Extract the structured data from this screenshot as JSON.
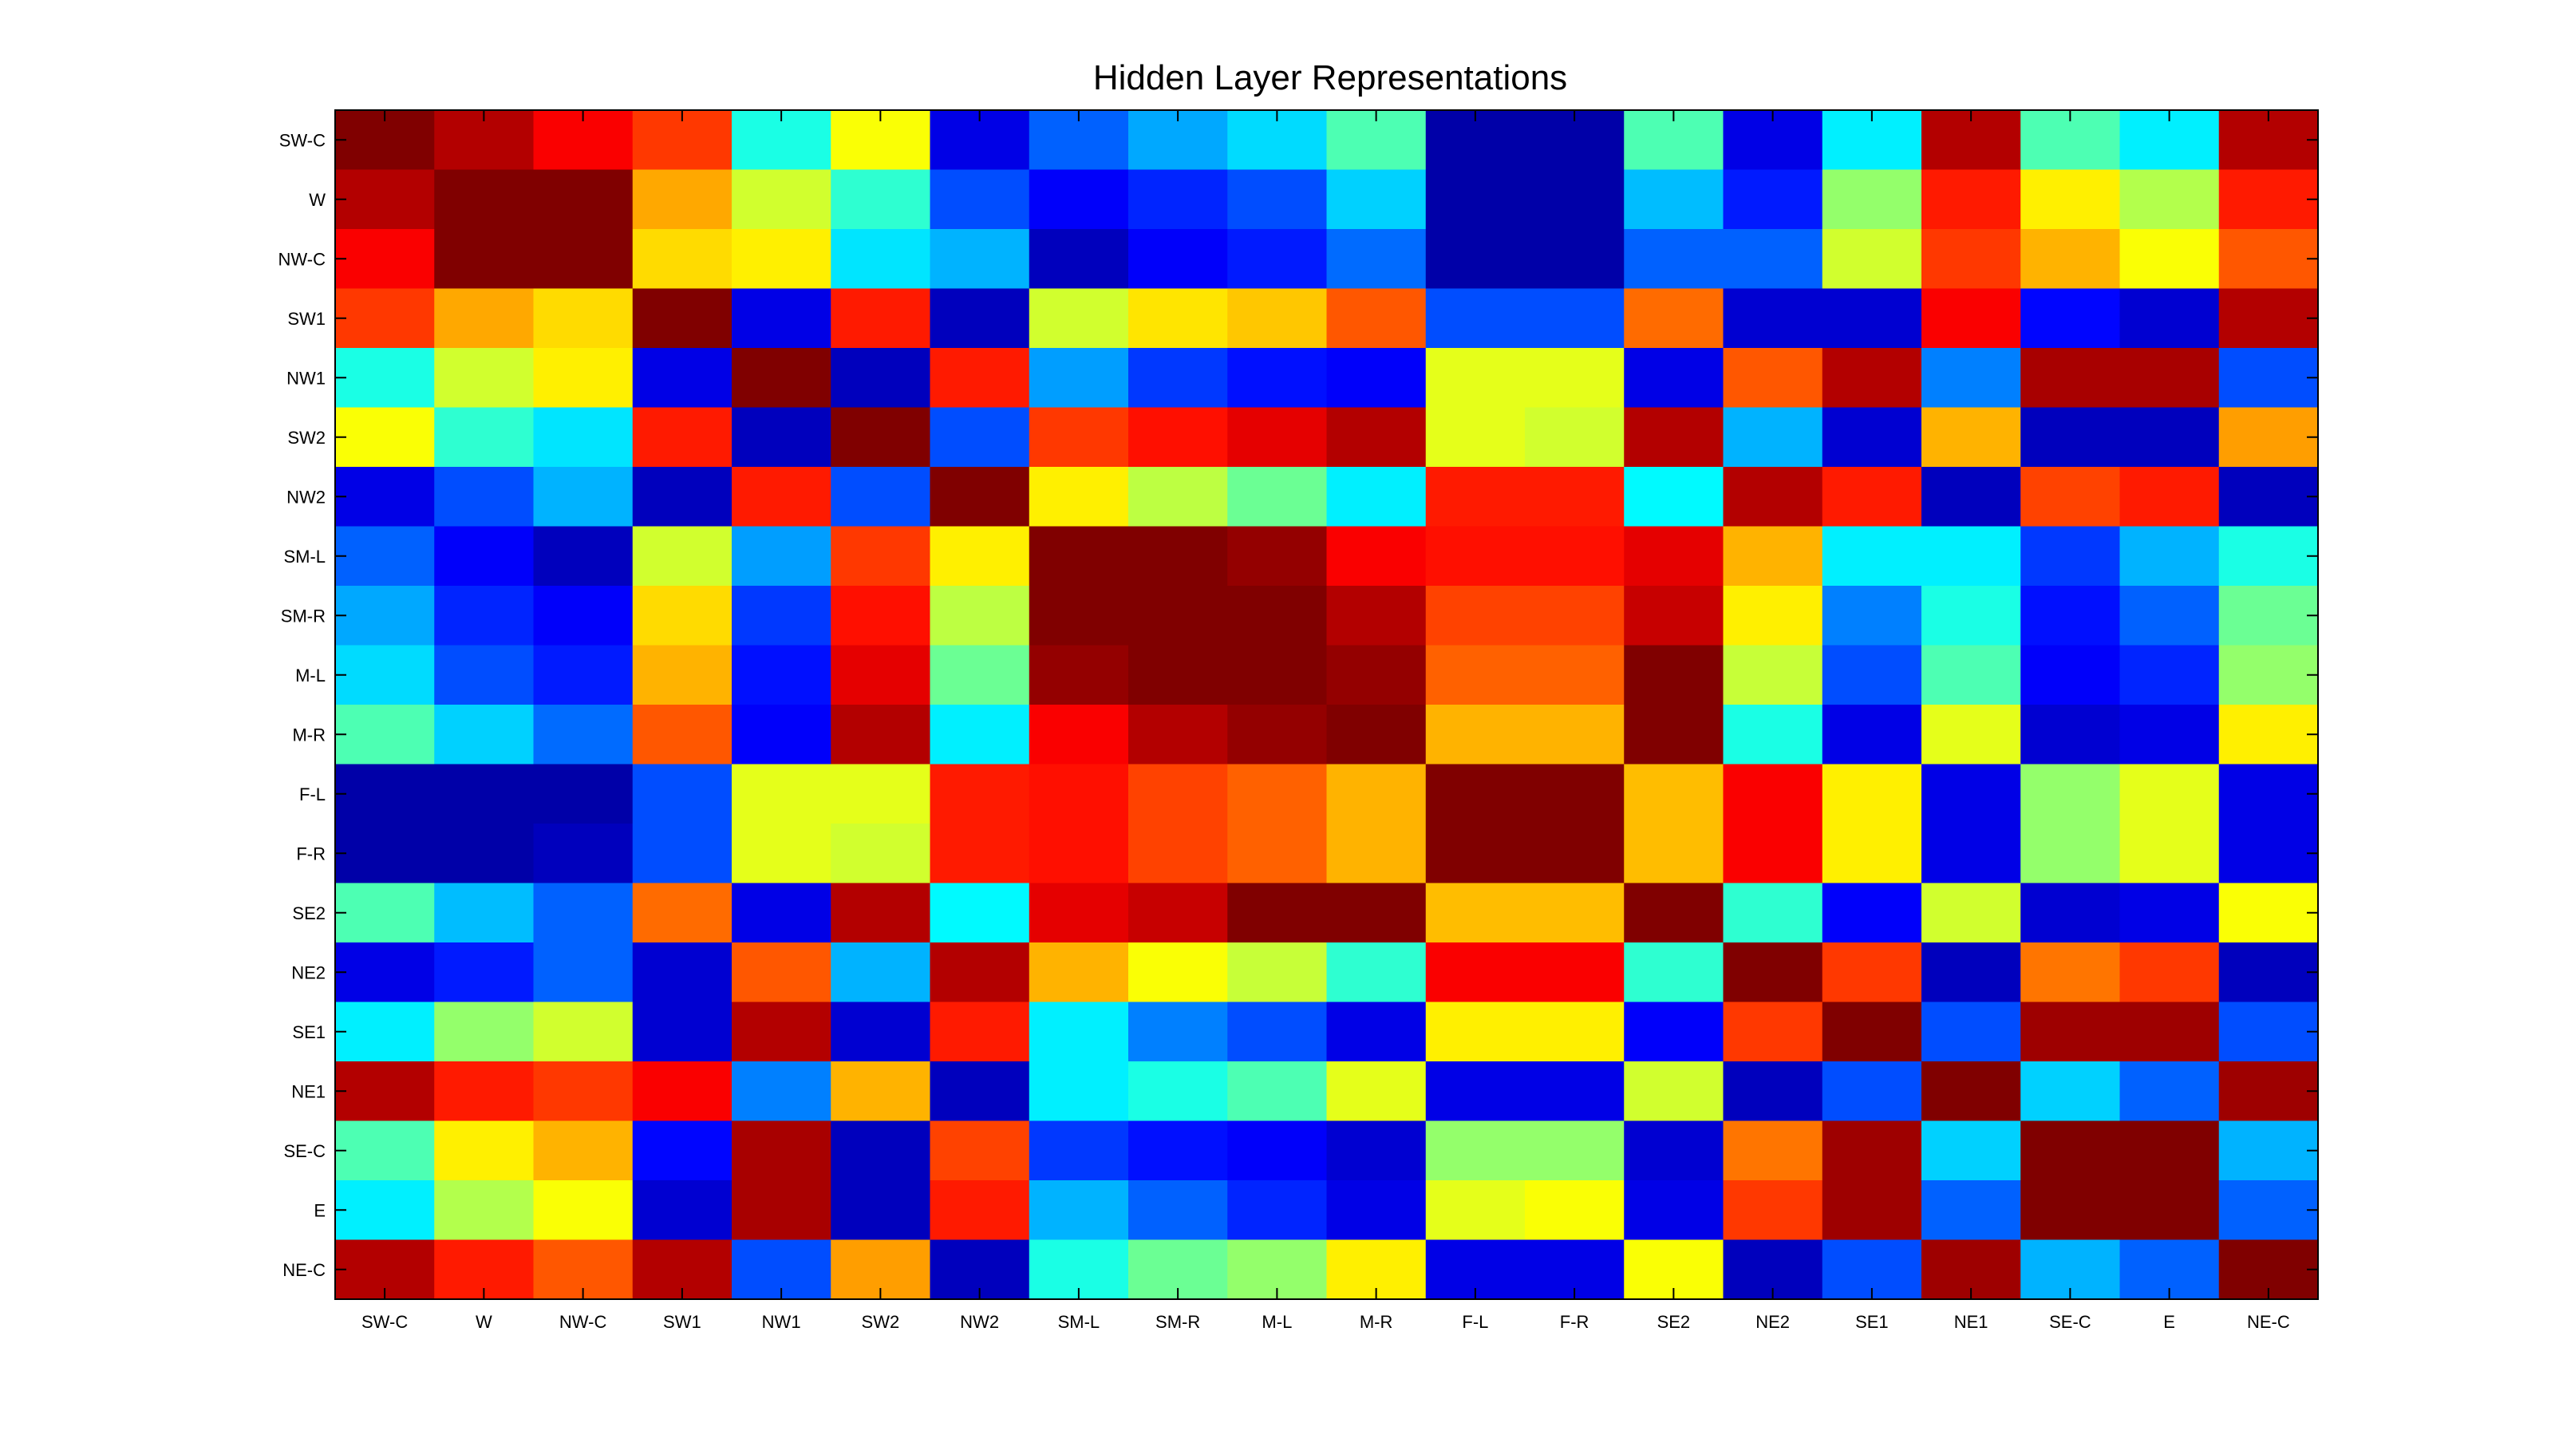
{
  "chart_data": {
    "type": "heatmap",
    "title": "Hidden Layer Representations",
    "xlabel": "",
    "ylabel": "",
    "colormap": "jet",
    "value_range": [
      0,
      1
    ],
    "x_categories": [
      "SW-C",
      "W",
      "NW-C",
      "SW1",
      "NW1",
      "SW2",
      "NW2",
      "SM-L",
      "SM-R",
      "M-L",
      "M-R",
      "F-L",
      "F-R",
      "SE2",
      "NE2",
      "SE1",
      "NE1",
      "SE-C",
      "E",
      "NE-C"
    ],
    "y_categories": [
      "SW-C",
      "W",
      "NW-C",
      "SW1",
      "NW1",
      "SW2",
      "NW2",
      "SM-L",
      "SM-R",
      "M-L",
      "M-R",
      "F-L",
      "F-R",
      "SE2",
      "NE2",
      "SE1",
      "NE1",
      "SE-C",
      "E",
      "NE-C"
    ],
    "values": [
      [
        1.0,
        0.95,
        0.88,
        0.82,
        0.4,
        0.62,
        0.1,
        0.22,
        0.29,
        0.34,
        0.45,
        0.04,
        0.04,
        0.45,
        0.1,
        0.36,
        0.95,
        0.45,
        0.36,
        0.95
      ],
      [
        0.95,
        1.0,
        1.0,
        0.71,
        0.58,
        0.42,
        0.2,
        0.12,
        0.16,
        0.2,
        0.33,
        0.04,
        0.04,
        0.31,
        0.15,
        0.52,
        0.85,
        0.64,
        0.55,
        0.85
      ],
      [
        0.88,
        1.0,
        1.0,
        0.66,
        0.64,
        0.35,
        0.3,
        0.06,
        0.12,
        0.15,
        0.23,
        0.04,
        0.04,
        0.22,
        0.22,
        0.58,
        0.82,
        0.7,
        0.62,
        0.79
      ],
      [
        0.82,
        0.71,
        0.66,
        1.0,
        0.1,
        0.85,
        0.06,
        0.58,
        0.65,
        0.68,
        0.79,
        0.2,
        0.2,
        0.77,
        0.08,
        0.08,
        0.88,
        0.13,
        0.08,
        0.95
      ],
      [
        0.4,
        0.58,
        0.64,
        0.1,
        1.0,
        0.06,
        0.85,
        0.28,
        0.18,
        0.14,
        0.12,
        0.6,
        0.6,
        0.1,
        0.79,
        0.95,
        0.25,
        0.96,
        0.96,
        0.2
      ],
      [
        0.62,
        0.42,
        0.35,
        0.85,
        0.06,
        1.0,
        0.2,
        0.82,
        0.86,
        0.9,
        0.95,
        0.6,
        0.58,
        0.95,
        0.3,
        0.08,
        0.7,
        0.06,
        0.06,
        0.72
      ],
      [
        0.1,
        0.2,
        0.3,
        0.06,
        0.85,
        0.2,
        1.0,
        0.64,
        0.56,
        0.48,
        0.36,
        0.85,
        0.85,
        0.37,
        0.95,
        0.85,
        0.06,
        0.81,
        0.85,
        0.06
      ],
      [
        0.22,
        0.12,
        0.06,
        0.58,
        0.28,
        0.82,
        0.64,
        1.0,
        1.0,
        0.98,
        0.88,
        0.86,
        0.86,
        0.9,
        0.7,
        0.36,
        0.36,
        0.18,
        0.3,
        0.4
      ],
      [
        0.29,
        0.16,
        0.12,
        0.66,
        0.18,
        0.86,
        0.56,
        1.0,
        1.0,
        1.0,
        0.95,
        0.81,
        0.81,
        0.93,
        0.64,
        0.25,
        0.4,
        0.14,
        0.22,
        0.48
      ],
      [
        0.34,
        0.2,
        0.15,
        0.7,
        0.14,
        0.9,
        0.48,
        0.98,
        1.0,
        1.0,
        0.98,
        0.78,
        0.78,
        1.0,
        0.57,
        0.2,
        0.45,
        0.12,
        0.16,
        0.52
      ],
      [
        0.45,
        0.33,
        0.23,
        0.79,
        0.12,
        0.95,
        0.36,
        0.88,
        0.95,
        0.98,
        1.0,
        0.7,
        0.7,
        1.0,
        0.4,
        0.1,
        0.6,
        0.08,
        0.1,
        0.64
      ],
      [
        0.04,
        0.04,
        0.04,
        0.2,
        0.6,
        0.6,
        0.85,
        0.86,
        0.81,
        0.78,
        0.7,
        1.0,
        1.0,
        0.69,
        0.88,
        0.64,
        0.1,
        0.52,
        0.6,
        0.1
      ],
      [
        0.04,
        0.04,
        0.06,
        0.2,
        0.6,
        0.58,
        0.85,
        0.86,
        0.81,
        0.78,
        0.7,
        1.0,
        1.0,
        0.69,
        0.88,
        0.64,
        0.1,
        0.52,
        0.6,
        0.1
      ],
      [
        0.45,
        0.31,
        0.22,
        0.77,
        0.1,
        0.95,
        0.37,
        0.9,
        0.93,
        1.0,
        1.0,
        0.69,
        0.69,
        1.0,
        0.42,
        0.12,
        0.58,
        0.08,
        0.1,
        0.62
      ],
      [
        0.1,
        0.15,
        0.22,
        0.08,
        0.79,
        0.3,
        0.95,
        0.7,
        0.62,
        0.57,
        0.42,
        0.88,
        0.88,
        0.42,
        1.0,
        0.82,
        0.06,
        0.76,
        0.82,
        0.06
      ],
      [
        0.36,
        0.52,
        0.58,
        0.08,
        0.95,
        0.08,
        0.85,
        0.36,
        0.25,
        0.2,
        0.1,
        0.64,
        0.64,
        0.12,
        0.82,
        1.0,
        0.2,
        0.97,
        0.97,
        0.2
      ],
      [
        0.95,
        0.85,
        0.82,
        0.88,
        0.25,
        0.7,
        0.06,
        0.36,
        0.4,
        0.45,
        0.6,
        0.1,
        0.1,
        0.58,
        0.06,
        0.2,
        1.0,
        0.33,
        0.22,
        0.97
      ],
      [
        0.45,
        0.64,
        0.7,
        0.13,
        0.96,
        0.06,
        0.81,
        0.18,
        0.14,
        0.12,
        0.08,
        0.52,
        0.52,
        0.08,
        0.76,
        0.97,
        0.33,
        1.0,
        1.0,
        0.3
      ],
      [
        0.36,
        0.55,
        0.62,
        0.08,
        0.96,
        0.06,
        0.85,
        0.3,
        0.22,
        0.16,
        0.1,
        0.6,
        0.62,
        0.1,
        0.82,
        0.97,
        0.22,
        1.0,
        1.0,
        0.22
      ],
      [
        0.95,
        0.85,
        0.79,
        0.95,
        0.2,
        0.72,
        0.06,
        0.4,
        0.48,
        0.52,
        0.64,
        0.1,
        0.1,
        0.62,
        0.06,
        0.2,
        0.97,
        0.3,
        0.22,
        1.0
      ]
    ]
  }
}
